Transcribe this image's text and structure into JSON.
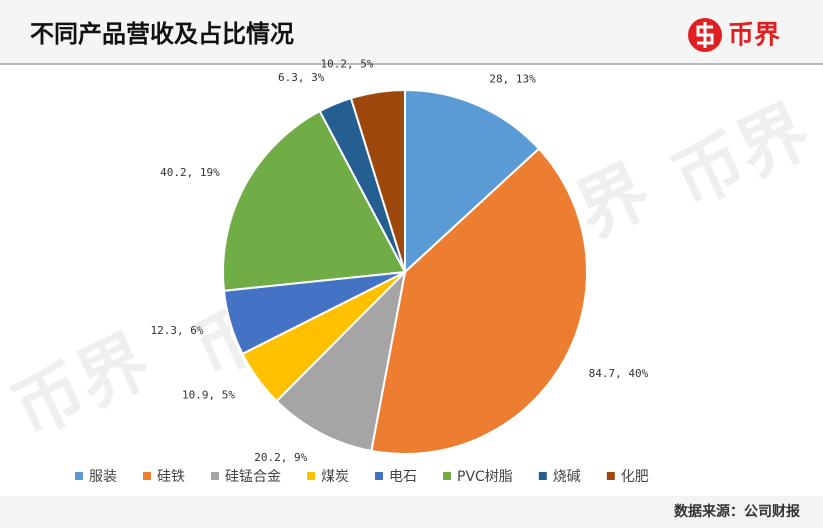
{
  "chart_data": {
    "type": "pie",
    "title": "不同产品营收及占比情况",
    "logo": "币界",
    "watermark": "币界",
    "source": "数据来源：公司财报",
    "categories": [
      "服装",
      "硅铁",
      "硅锰合金",
      "煤炭",
      "电石",
      "PVC树脂",
      "烧碱",
      "化肥"
    ],
    "values": [
      28,
      84.7,
      20.2,
      10.9,
      12.3,
      40.2,
      6.3,
      10.2
    ],
    "value_labels": [
      "28, 13%",
      "84.7, 40%",
      "20.2, 9%",
      "10.9, 5%",
      "12.3, 6%",
      "40.2, 19%",
      "6.3, 3%",
      "10.2, 5%"
    ],
    "colors": [
      "#5b9bd5",
      "#ed7d31",
      "#a5a5a5",
      "#ffc000",
      "#4472c4",
      "#70ad47",
      "#255e91",
      "#9e480e"
    ],
    "legend": "bottom"
  }
}
